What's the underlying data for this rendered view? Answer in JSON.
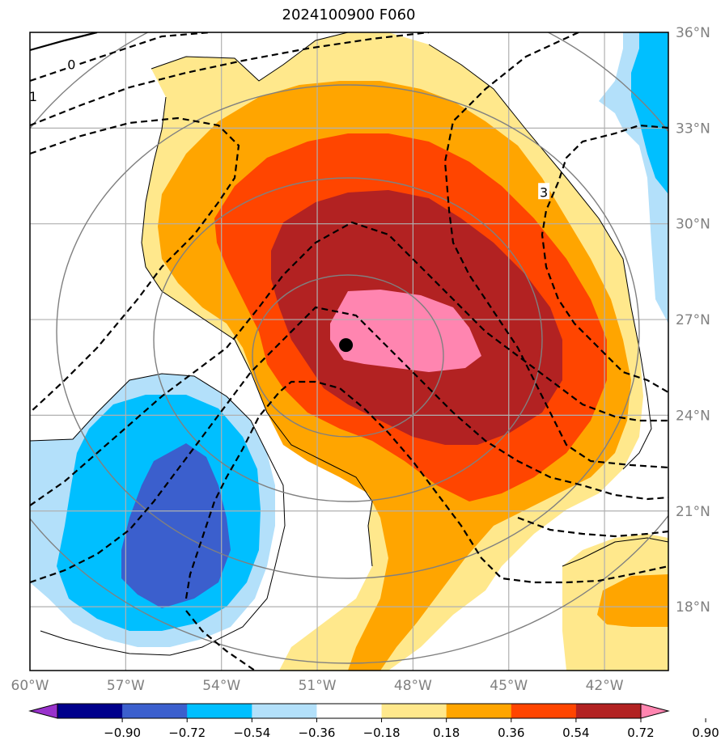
{
  "title": "2024100900 F060",
  "map": {
    "extent": {
      "lon": [
        -60,
        -40
      ],
      "lat": [
        16,
        36
      ]
    },
    "lon_ticks": [
      {
        "value": -60,
        "label": "60°W"
      },
      {
        "value": -57,
        "label": "57°W"
      },
      {
        "value": -54,
        "label": "54°W"
      },
      {
        "value": -51,
        "label": "51°W"
      },
      {
        "value": -48,
        "label": "48°W"
      },
      {
        "value": -45,
        "label": "45°W"
      },
      {
        "value": -42,
        "label": "42°W"
      }
    ],
    "lat_ticks": [
      {
        "value": 36,
        "label": "36°N"
      },
      {
        "value": 33,
        "label": "33°N"
      },
      {
        "value": 30,
        "label": "30°N"
      },
      {
        "value": 27,
        "label": "27°N"
      },
      {
        "value": 24,
        "label": "24°N"
      },
      {
        "value": 21,
        "label": "21°N"
      },
      {
        "value": 18,
        "label": "18°N"
      }
    ],
    "grid": true,
    "center_marker": {
      "lon": -50.1,
      "lat": 26.2
    },
    "contour_labels": [
      {
        "text": "0",
        "lon": -58.7,
        "lat": 35.0
      },
      {
        "text": "1",
        "lon": -59.9,
        "lat": 34.0
      },
      {
        "text": "3",
        "lon": -43.9,
        "lat": 31.0
      }
    ],
    "colors": {
      "pink": "#ff85b0",
      "darkred": "#b22222",
      "red": "#ff4500",
      "orange": "#ffa500",
      "yellow": "#ffe88c",
      "lightblue": "#b3e0fa",
      "blue": "#00bfff",
      "royal": "#3b5fcd",
      "navy": "#00008b",
      "purple": "#9932cc"
    }
  },
  "colorbar": {
    "ticks": [
      "−0.90",
      "−0.72",
      "−0.54",
      "−0.36",
      "−0.18",
      "0.18",
      "0.36",
      "0.54",
      "0.72",
      "0.90"
    ],
    "colors": [
      "#9932cc",
      "#00008b",
      "#3b5fcd",
      "#00bfff",
      "#b3e0fa",
      "#ffffff",
      "#ffe88c",
      "#ffa500",
      "#ff4500",
      "#b22222",
      "#ff85b0"
    ]
  }
}
